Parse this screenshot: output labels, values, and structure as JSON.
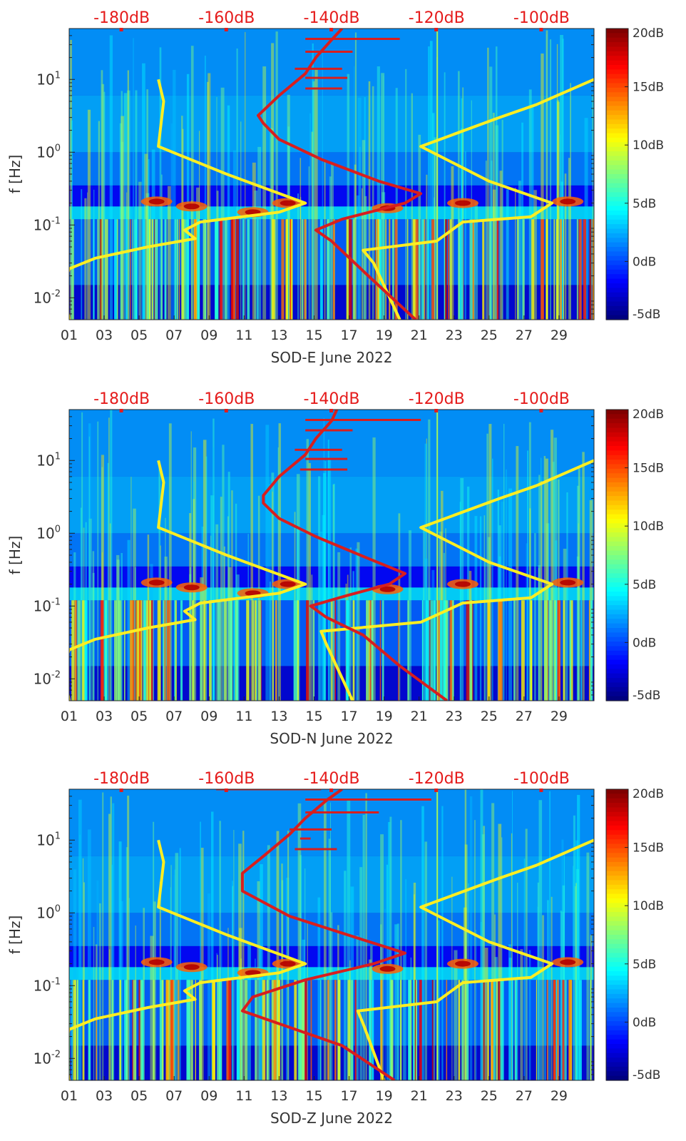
{
  "colors": {
    "noise_model": "#ffee22",
    "red_curve": "#d81e1e",
    "top_axis_text": "#e51b1b"
  },
  "chart_data": [
    {
      "type": "heatmap",
      "title": "",
      "xlabel": "SOD-E June 2022",
      "ylabel": "f [Hz]",
      "x_ticks": [
        "01",
        "03",
        "05",
        "07",
        "09",
        "11",
        "13",
        "15",
        "17",
        "19",
        "21",
        "23",
        "25",
        "27",
        "29"
      ],
      "y_ticks": [
        "10^-2",
        "10^-1",
        "10^0",
        "10^1"
      ],
      "ylim_hz": [
        0.005,
        50
      ],
      "xlim_day": [
        1,
        31
      ],
      "top_axis_ticks": [
        "-180dB",
        "-160dB",
        "-140dB",
        "-120dB",
        "-100dB"
      ],
      "top_axis_range_db": [
        -190,
        -90
      ],
      "colorbar": {
        "ticks": [
          "20dB",
          "15dB",
          "10dB",
          "5dB",
          "0dB",
          "-5dB"
        ],
        "range_db": [
          -5,
          20
        ]
      },
      "series": [
        {
          "name": "noise-model-yellow",
          "points_db_hz": [
            [
              -190,
              0.005
            ],
            [
              -191,
              0.015
            ],
            [
              -190,
              0.025
            ],
            [
              -185,
              0.035
            ],
            [
              -175,
              0.05
            ],
            [
              -166,
              0.065
            ],
            [
              -168,
              0.085
            ],
            [
              -165,
              0.11
            ],
            [
              -150,
              0.15
            ],
            [
              -145,
              0.2
            ],
            [
              -160,
              0.5
            ],
            [
              -173,
              1.2
            ],
            [
              -172,
              5
            ],
            [
              -173,
              10
            ]
          ]
        },
        {
          "name": "noise-model-yellow-high",
          "points_db_hz": [
            [
              -127,
              0.005
            ],
            [
              -132,
              0.03
            ],
            [
              -134,
              0.045
            ],
            [
              -120,
              0.06
            ],
            [
              -115,
              0.11
            ],
            [
              -102,
              0.13
            ],
            [
              -98,
              0.2
            ],
            [
              -110,
              0.4
            ],
            [
              -123,
              1.2
            ],
            [
              -108,
              3
            ],
            [
              -101,
              4.5
            ],
            [
              -90,
              10
            ]
          ]
        },
        {
          "name": "red-curve",
          "points_db_hz": [
            [
              -124,
              0.005
            ],
            [
              -133,
              0.02
            ],
            [
              -140,
              0.06
            ],
            [
              -143,
              0.085
            ],
            [
              -138,
              0.12
            ],
            [
              -126,
              0.2
            ],
            [
              -123,
              0.27
            ],
            [
              -131,
              0.4
            ],
            [
              -142,
              0.8
            ],
            [
              -150,
              1.5
            ],
            [
              -153,
              2.5
            ],
            [
              -154,
              3.2
            ],
            [
              -150,
              6
            ],
            [
              -145,
              12
            ],
            [
              -143,
              20
            ],
            [
              -140,
              35
            ],
            [
              -138,
              50
            ]
          ]
        }
      ],
      "red_spurs": [
        {
          "db_start": -145,
          "db_end": -127,
          "hz": 36
        },
        {
          "db_start": -145,
          "db_end": -136,
          "hz": 24
        },
        {
          "db_start": -145,
          "db_end": -137,
          "hz": 10.5
        },
        {
          "db_start": -145,
          "db_end": -138,
          "hz": 7.5
        },
        {
          "db_start": -147,
          "db_end": -138,
          "hz": 14
        }
      ]
    },
    {
      "type": "heatmap",
      "title": "",
      "xlabel": "SOD-N June 2022",
      "ylabel": "f [Hz]",
      "x_ticks": [
        "01",
        "03",
        "05",
        "07",
        "09",
        "11",
        "13",
        "15",
        "17",
        "19",
        "21",
        "23",
        "25",
        "27",
        "29"
      ],
      "y_ticks": [
        "10^-2",
        "10^-1",
        "10^0",
        "10^1"
      ],
      "ylim_hz": [
        0.005,
        50
      ],
      "xlim_day": [
        1,
        31
      ],
      "top_axis_ticks": [
        "-180dB",
        "-160dB",
        "-140dB",
        "-120dB",
        "-100dB"
      ],
      "top_axis_range_db": [
        -190,
        -90
      ],
      "colorbar": {
        "ticks": [
          "20dB",
          "15dB",
          "10dB",
          "5dB",
          "0dB",
          "-5dB"
        ],
        "range_db": [
          -5,
          20
        ]
      },
      "series": [
        {
          "name": "noise-model-yellow",
          "points_db_hz": [
            [
              -190,
              0.005
            ],
            [
              -191,
              0.015
            ],
            [
              -190,
              0.025
            ],
            [
              -185,
              0.035
            ],
            [
              -175,
              0.05
            ],
            [
              -166,
              0.065
            ],
            [
              -168,
              0.085
            ],
            [
              -165,
              0.11
            ],
            [
              -150,
              0.15
            ],
            [
              -145,
              0.2
            ],
            [
              -160,
              0.5
            ],
            [
              -173,
              1.2
            ],
            [
              -172,
              5
            ],
            [
              -173,
              10
            ]
          ]
        },
        {
          "name": "noise-model-yellow-high",
          "points_db_hz": [
            [
              -136,
              0.005
            ],
            [
              -141,
              0.03
            ],
            [
              -142,
              0.045
            ],
            [
              -123,
              0.06
            ],
            [
              -115,
              0.11
            ],
            [
              -102,
              0.13
            ],
            [
              -98,
              0.2
            ],
            [
              -110,
              0.4
            ],
            [
              -123,
              1.2
            ],
            [
              -108,
              3
            ],
            [
              -101,
              4.5
            ],
            [
              -90,
              10
            ]
          ]
        },
        {
          "name": "red-curve",
          "points_db_hz": [
            [
              -118,
              0.005
            ],
            [
              -127,
              0.015
            ],
            [
              -134,
              0.04
            ],
            [
              -141,
              0.07
            ],
            [
              -144,
              0.1
            ],
            [
              -137,
              0.14
            ],
            [
              -129,
              0.2
            ],
            [
              -126,
              0.28
            ],
            [
              -133,
              0.45
            ],
            [
              -143,
              0.9
            ],
            [
              -150,
              1.6
            ],
            [
              -153,
              2.6
            ],
            [
              -153,
              3.3
            ],
            [
              -150,
              6
            ],
            [
              -145,
              12
            ],
            [
              -143,
              20
            ],
            [
              -140,
              35
            ],
            [
              -139,
              50
            ]
          ]
        }
      ],
      "red_spurs": [
        {
          "db_start": -145,
          "db_end": -123,
          "hz": 36
        },
        {
          "db_start": -145,
          "db_end": -136,
          "hz": 26
        },
        {
          "db_start": -145,
          "db_end": -137,
          "hz": 10.5
        },
        {
          "db_start": -146,
          "db_end": -137,
          "hz": 7.5
        },
        {
          "db_start": -147,
          "db_end": -138,
          "hz": 14
        }
      ]
    },
    {
      "type": "heatmap",
      "title": "",
      "xlabel": "SOD-Z June 2022",
      "ylabel": "f [Hz]",
      "x_ticks": [
        "01",
        "03",
        "05",
        "07",
        "09",
        "11",
        "13",
        "15",
        "17",
        "19",
        "21",
        "23",
        "25",
        "27",
        "29"
      ],
      "y_ticks": [
        "10^-2",
        "10^-1",
        "10^0",
        "10^1"
      ],
      "ylim_hz": [
        0.005,
        50
      ],
      "xlim_day": [
        1,
        31
      ],
      "top_axis_ticks": [
        "-180dB",
        "-160dB",
        "-140dB",
        "-120dB",
        "-100dB"
      ],
      "top_axis_range_db": [
        -190,
        -90
      ],
      "colorbar": {
        "ticks": [
          "20dB",
          "15dB",
          "10dB",
          "5dB",
          "0dB",
          "-5dB"
        ],
        "range_db": [
          -5,
          20
        ]
      },
      "series": [
        {
          "name": "noise-model-yellow",
          "points_db_hz": [
            [
              -190,
              0.005
            ],
            [
              -191,
              0.015
            ],
            [
              -190,
              0.025
            ],
            [
              -185,
              0.035
            ],
            [
              -175,
              0.05
            ],
            [
              -166,
              0.065
            ],
            [
              -168,
              0.085
            ],
            [
              -165,
              0.11
            ],
            [
              -150,
              0.15
            ],
            [
              -145,
              0.2
            ],
            [
              -160,
              0.5
            ],
            [
              -173,
              1.2
            ],
            [
              -172,
              5
            ],
            [
              -173,
              10
            ]
          ]
        },
        {
          "name": "noise-model-yellow-high",
          "points_db_hz": [
            [
              -130,
              0.005
            ],
            [
              -134,
              0.03
            ],
            [
              -135,
              0.045
            ],
            [
              -120,
              0.06
            ],
            [
              -115,
              0.11
            ],
            [
              -102,
              0.13
            ],
            [
              -98,
              0.2
            ],
            [
              -110,
              0.4
            ],
            [
              -123,
              1.2
            ],
            [
              -108,
              3
            ],
            [
              -101,
              4.5
            ],
            [
              -90,
              10
            ]
          ]
        },
        {
          "name": "red-curve",
          "points_db_hz": [
            [
              -128,
              0.005
            ],
            [
              -138,
              0.015
            ],
            [
              -150,
              0.03
            ],
            [
              -157,
              0.045
            ],
            [
              -155,
              0.07
            ],
            [
              -145,
              0.12
            ],
            [
              -132,
              0.2
            ],
            [
              -126,
              0.28
            ],
            [
              -135,
              0.45
            ],
            [
              -148,
              0.9
            ],
            [
              -157,
              2
            ],
            [
              -157,
              3.5
            ],
            [
              -153,
              6
            ],
            [
              -148,
              12
            ],
            [
              -145,
              20
            ],
            [
              -141,
              35
            ],
            [
              -138,
              50
            ]
          ]
        }
      ],
      "red_spurs": [
        {
          "db_start": -145,
          "db_end": -121,
          "hz": 36
        },
        {
          "db_start": -145,
          "db_end": -131,
          "hz": 24
        },
        {
          "db_start": -146,
          "db_end": -144,
          "hz": 10.5
        },
        {
          "db_start": -147,
          "db_end": -139,
          "hz": 7.5
        },
        {
          "db_start": -148,
          "db_end": -140,
          "hz": 14
        },
        {
          "db_start": -162,
          "db_end": -142,
          "hz": 50
        }
      ]
    }
  ]
}
